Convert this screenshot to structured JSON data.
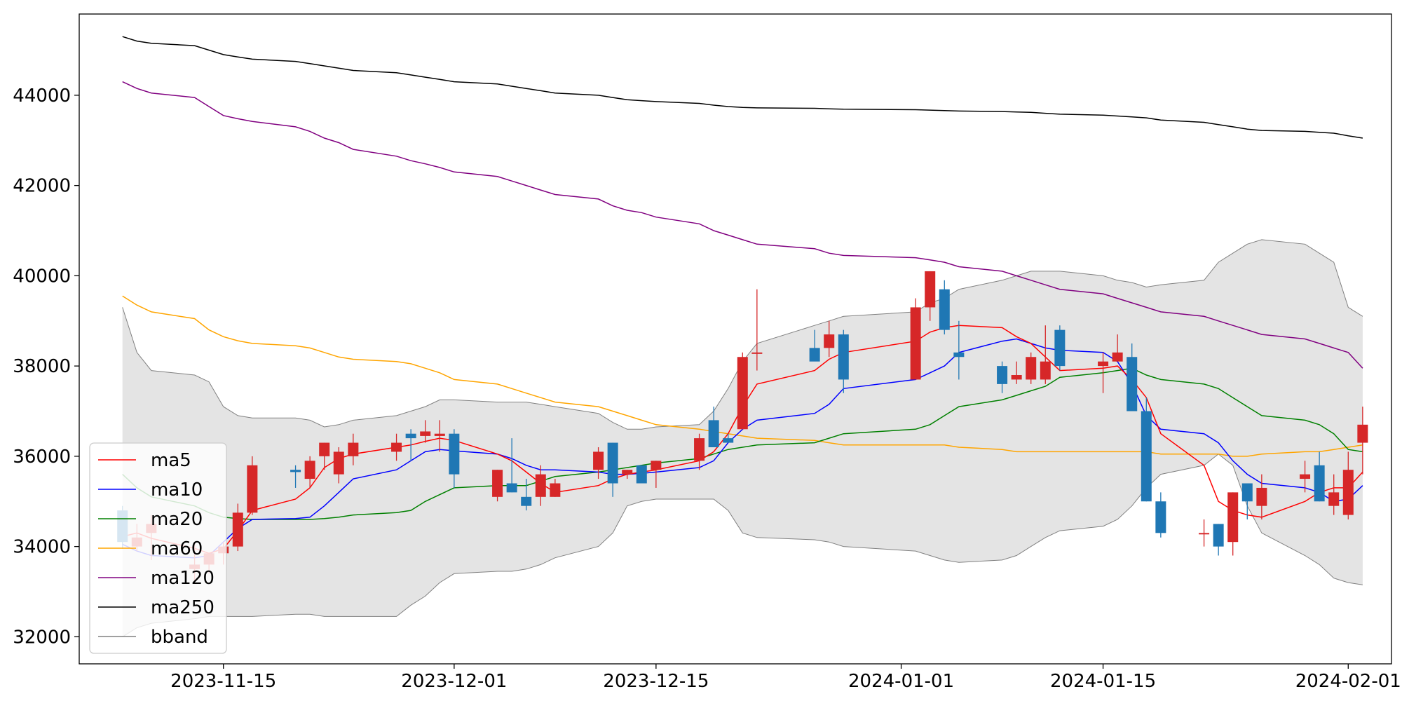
{
  "chart_data": {
    "type": "candlestick",
    "title": "",
    "xlabel": "",
    "ylabel": "",
    "xlim": [
      "2023-11-05",
      "2024-02-04"
    ],
    "ylim": [
      31400,
      45800
    ],
    "x_ticks": [
      "2023-11-15",
      "2023-12-01",
      "2023-12-15",
      "2024-01-01",
      "2024-01-15",
      "2024-02-01"
    ],
    "y_ticks": [
      32000,
      34000,
      36000,
      38000,
      40000,
      42000,
      44000
    ],
    "legend": {
      "position": "lower-left",
      "entries": [
        "ma5",
        "ma10",
        "ma20",
        "ma60",
        "ma120",
        "ma250",
        "bband"
      ]
    },
    "colors": {
      "up": "#d62728",
      "down": "#1f77b4",
      "ma5": "#ff0000",
      "ma10": "#0000ff",
      "ma20": "#008000",
      "ma60": "#ffa500",
      "ma120": "#800080",
      "ma250": "#000000",
      "bband_line": "#808080",
      "bband_fill": "#e4e4e4"
    },
    "dates": [
      "2023-11-08",
      "2023-11-09",
      "2023-11-10",
      "2023-11-13",
      "2023-11-14",
      "2023-11-15",
      "2023-11-16",
      "2023-11-17",
      "2023-11-20",
      "2023-11-21",
      "2023-11-22",
      "2023-11-23",
      "2023-11-24",
      "2023-11-27",
      "2023-11-28",
      "2023-11-29",
      "2023-11-30",
      "2023-12-01",
      "2023-12-04",
      "2023-12-05",
      "2023-12-06",
      "2023-12-07",
      "2023-12-08",
      "2023-12-11",
      "2023-12-12",
      "2023-12-13",
      "2023-12-14",
      "2023-12-15",
      "2023-12-18",
      "2023-12-19",
      "2023-12-20",
      "2023-12-21",
      "2023-12-22",
      "2023-12-26",
      "2023-12-27",
      "2023-12-28",
      "2024-01-02",
      "2024-01-03",
      "2024-01-04",
      "2024-01-05",
      "2024-01-08",
      "2024-01-09",
      "2024-01-10",
      "2024-01-11",
      "2024-01-12",
      "2024-01-15",
      "2024-01-16",
      "2024-01-17",
      "2024-01-18",
      "2024-01-19",
      "2024-01-22",
      "2024-01-23",
      "2024-01-24",
      "2024-01-25",
      "2024-01-26",
      "2024-01-29",
      "2024-01-30",
      "2024-01-31",
      "2024-02-01",
      "2024-02-02"
    ],
    "ohlc": [
      [
        34800,
        34900,
        33950,
        34100
      ],
      [
        34000,
        34500,
        33900,
        34200
      ],
      [
        34300,
        34700,
        33700,
        34500
      ],
      [
        33500,
        34100,
        33200,
        33600
      ],
      [
        33600,
        33800,
        33400,
        33850
      ],
      [
        33850,
        34100,
        33600,
        34000
      ],
      [
        34000,
        34950,
        33900,
        34750
      ],
      [
        34750,
        36000,
        34700,
        35800
      ],
      [
        35700,
        35800,
        35300,
        35650
      ],
      [
        35500,
        36000,
        35300,
        35900
      ],
      [
        36000,
        36300,
        35700,
        36300
      ],
      [
        35600,
        36200,
        35400,
        36100
      ],
      [
        36000,
        36500,
        35800,
        36300
      ],
      [
        36100,
        36500,
        35900,
        36300
      ],
      [
        36500,
        36600,
        35900,
        36400
      ],
      [
        36450,
        36800,
        36300,
        36550
      ],
      [
        36450,
        36800,
        36100,
        36500
      ],
      [
        36500,
        36600,
        35300,
        35600
      ],
      [
        35100,
        35700,
        35000,
        35700
      ],
      [
        35400,
        36400,
        35200,
        35200
      ],
      [
        35100,
        35500,
        34800,
        34900
      ],
      [
        35100,
        35800,
        34900,
        35600
      ],
      [
        35100,
        35500,
        35100,
        35400
      ],
      [
        35700,
        36200,
        35500,
        36100
      ],
      [
        36300,
        36300,
        35100,
        35400
      ],
      [
        35600,
        35700,
        35500,
        35700
      ],
      [
        35800,
        35800,
        35400,
        35400
      ],
      [
        35700,
        35900,
        35300,
        35900
      ],
      [
        35900,
        36500,
        35700,
        36400
      ],
      [
        36800,
        37100,
        36200,
        36200
      ],
      [
        36400,
        36500,
        36300,
        36300
      ],
      [
        36600,
        38300,
        36600,
        38200
      ],
      [
        38300,
        39700,
        37900,
        38300
      ],
      [
        38400,
        38800,
        38200,
        38100
      ],
      [
        38400,
        39000,
        38200,
        38700
      ],
      [
        38700,
        38800,
        37400,
        37700
      ],
      [
        37700,
        39500,
        37700,
        39300
      ],
      [
        39300,
        40100,
        39000,
        40100
      ],
      [
        39700,
        39900,
        38700,
        38800
      ],
      [
        38300,
        39000,
        37700,
        38200
      ],
      [
        38000,
        38100,
        37400,
        37600
      ],
      [
        37700,
        38100,
        37600,
        37800
      ],
      [
        37700,
        38300,
        37600,
        38200
      ],
      [
        37700,
        38900,
        37600,
        38100
      ],
      [
        38800,
        38900,
        37900,
        38000
      ],
      [
        38000,
        38300,
        37400,
        38100
      ],
      [
        38100,
        38700,
        38100,
        38300
      ],
      [
        38200,
        38500,
        37000,
        37000
      ],
      [
        37000,
        37300,
        35000,
        35000
      ],
      [
        35000,
        35200,
        34200,
        34300
      ],
      [
        34300,
        34600,
        34000,
        34300
      ],
      [
        34500,
        34500,
        33800,
        34000
      ],
      [
        34100,
        35200,
        33800,
        35200
      ],
      [
        35400,
        35400,
        34600,
        35000
      ],
      [
        34900,
        35600,
        34600,
        35300
      ],
      [
        35500,
        35900,
        35200,
        35600
      ],
      [
        35800,
        36100,
        35000,
        35000
      ],
      [
        34900,
        35600,
        34700,
        35200
      ],
      [
        34700,
        36100,
        34600,
        35700
      ],
      [
        36300,
        37100,
        35600,
        36700
      ]
    ],
    "ma5": [
      34220,
      34300,
      34180,
      33960,
      33850,
      33950,
      34350,
      34800,
      35050,
      35300,
      35750,
      35950,
      36050,
      36200,
      36250,
      36330,
      36400,
      36350,
      36050,
      35900,
      35650,
      35400,
      35200,
      35350,
      35500,
      35600,
      35650,
      35700,
      35900,
      36100,
      36500,
      37100,
      37600,
      37900,
      38150,
      38300,
      38550,
      38750,
      38850,
      38900,
      38850,
      38650,
      38500,
      38200,
      37900,
      37950,
      38000,
      37700,
      37300,
      36500,
      35800,
      35000,
      34800,
      34700,
      34650,
      35000,
      35200,
      35300,
      35300,
      35650
    ],
    "ma10": [
      34050,
      33900,
      33800,
      33750,
      33800,
      34100,
      34400,
      34600,
      34620,
      34650,
      34900,
      35200,
      35500,
      35700,
      35900,
      36100,
      36150,
      36120,
      36050,
      35950,
      35800,
      35700,
      35700,
      35650,
      35600,
      35600,
      35620,
      35650,
      35750,
      35900,
      36300,
      36600,
      36800,
      36950,
      37150,
      37500,
      37700,
      37850,
      38000,
      38300,
      38550,
      38600,
      38500,
      38400,
      38350,
      38300,
      38100,
      37600,
      36900,
      36600,
      36500,
      36300,
      35900,
      35600,
      35400,
      35300,
      35200,
      35000,
      35050,
      35350
    ],
    "ma20": [
      35600,
      35300,
      35100,
      34900,
      34750,
      34650,
      34620,
      34600,
      34600,
      34600,
      34620,
      34650,
      34700,
      34750,
      34800,
      35000,
      35150,
      35300,
      35350,
      35350,
      35350,
      35450,
      35550,
      35650,
      35700,
      35750,
      35800,
      35850,
      35950,
      36050,
      36150,
      36200,
      36250,
      36300,
      36400,
      36500,
      36600,
      36700,
      36900,
      37100,
      37250,
      37350,
      37450,
      37550,
      37750,
      37850,
      37900,
      37950,
      37800,
      37700,
      37600,
      37500,
      37300,
      37100,
      36900,
      36800,
      36700,
      36500,
      36150,
      36100
    ],
    "ma60": [
      39550,
      39350,
      39200,
      39050,
      38800,
      38650,
      38560,
      38500,
      38450,
      38400,
      38300,
      38200,
      38150,
      38100,
      38050,
      37950,
      37850,
      37700,
      37600,
      37500,
      37400,
      37300,
      37200,
      37100,
      37000,
      36900,
      36800,
      36700,
      36600,
      36550,
      36500,
      36450,
      36400,
      36350,
      36300,
      36250,
      36250,
      36250,
      36250,
      36200,
      36150,
      36100,
      36100,
      36100,
      36100,
      36100,
      36100,
      36100,
      36100,
      36050,
      36050,
      36050,
      36000,
      36000,
      36050,
      36100,
      36100,
      36150,
      36200,
      36250
    ],
    "ma120": [
      44300,
      44150,
      44050,
      43950,
      43750,
      43550,
      43480,
      43420,
      43300,
      43200,
      43050,
      42950,
      42800,
      42650,
      42550,
      42480,
      42400,
      42300,
      42200,
      42100,
      42000,
      41900,
      41800,
      41700,
      41550,
      41450,
      41400,
      41300,
      41150,
      41000,
      40900,
      40800,
      40700,
      40600,
      40500,
      40450,
      40400,
      40350,
      40300,
      40200,
      40100,
      40000,
      39900,
      39800,
      39700,
      39600,
      39500,
      39400,
      39300,
      39200,
      39100,
      39000,
      38900,
      38800,
      38700,
      38600,
      38500,
      38400,
      38300,
      37950
    ],
    "ma250": [
      45300,
      45200,
      45150,
      45100,
      45000,
      44900,
      44850,
      44800,
      44750,
      44700,
      44650,
      44600,
      44550,
      44500,
      44450,
      44400,
      44350,
      44300,
      44250,
      44200,
      44150,
      44100,
      44050,
      44000,
      43950,
      43900,
      43880,
      43860,
      43820,
      43780,
      43750,
      43730,
      43720,
      43710,
      43700,
      43690,
      43680,
      43670,
      43660,
      43650,
      43640,
      43630,
      43620,
      43600,
      43580,
      43560,
      43540,
      43520,
      43500,
      43450,
      43400,
      43350,
      43300,
      43250,
      43220,
      43200,
      43180,
      43160,
      43100,
      43050
    ],
    "bband_upper": [
      39300,
      38300,
      37900,
      37800,
      37650,
      37100,
      36900,
      36850,
      36850,
      36800,
      36650,
      36700,
      36800,
      36900,
      37000,
      37100,
      37250,
      37250,
      37200,
      37200,
      37200,
      37150,
      37100,
      36950,
      36750,
      36600,
      36600,
      36650,
      36700,
      37000,
      37500,
      38100,
      38500,
      38900,
      39000,
      39100,
      39200,
      39400,
      39500,
      39700,
      39900,
      40000,
      40100,
      40100,
      40100,
      40000,
      39900,
      39850,
      39750,
      39800,
      39900,
      40300,
      40500,
      40700,
      40800,
      40700,
      40500,
      40300,
      39300,
      39100
    ],
    "bband_lower": [
      32000,
      32200,
      32300,
      32400,
      32450,
      32450,
      32450,
      32450,
      32500,
      32500,
      32450,
      32450,
      32450,
      32450,
      32700,
      32900,
      33200,
      33400,
      33450,
      33450,
      33500,
      33600,
      33750,
      34000,
      34300,
      34900,
      35000,
      35050,
      35050,
      35050,
      34800,
      34300,
      34200,
      34150,
      34100,
      34000,
      33900,
      33800,
      33700,
      33650,
      33700,
      33800,
      34000,
      34200,
      34350,
      34450,
      34600,
      34900,
      35300,
      35600,
      35800,
      36050,
      35800,
      34900,
      34300,
      33800,
      33600,
      33300,
      33200,
      33150
    ]
  }
}
